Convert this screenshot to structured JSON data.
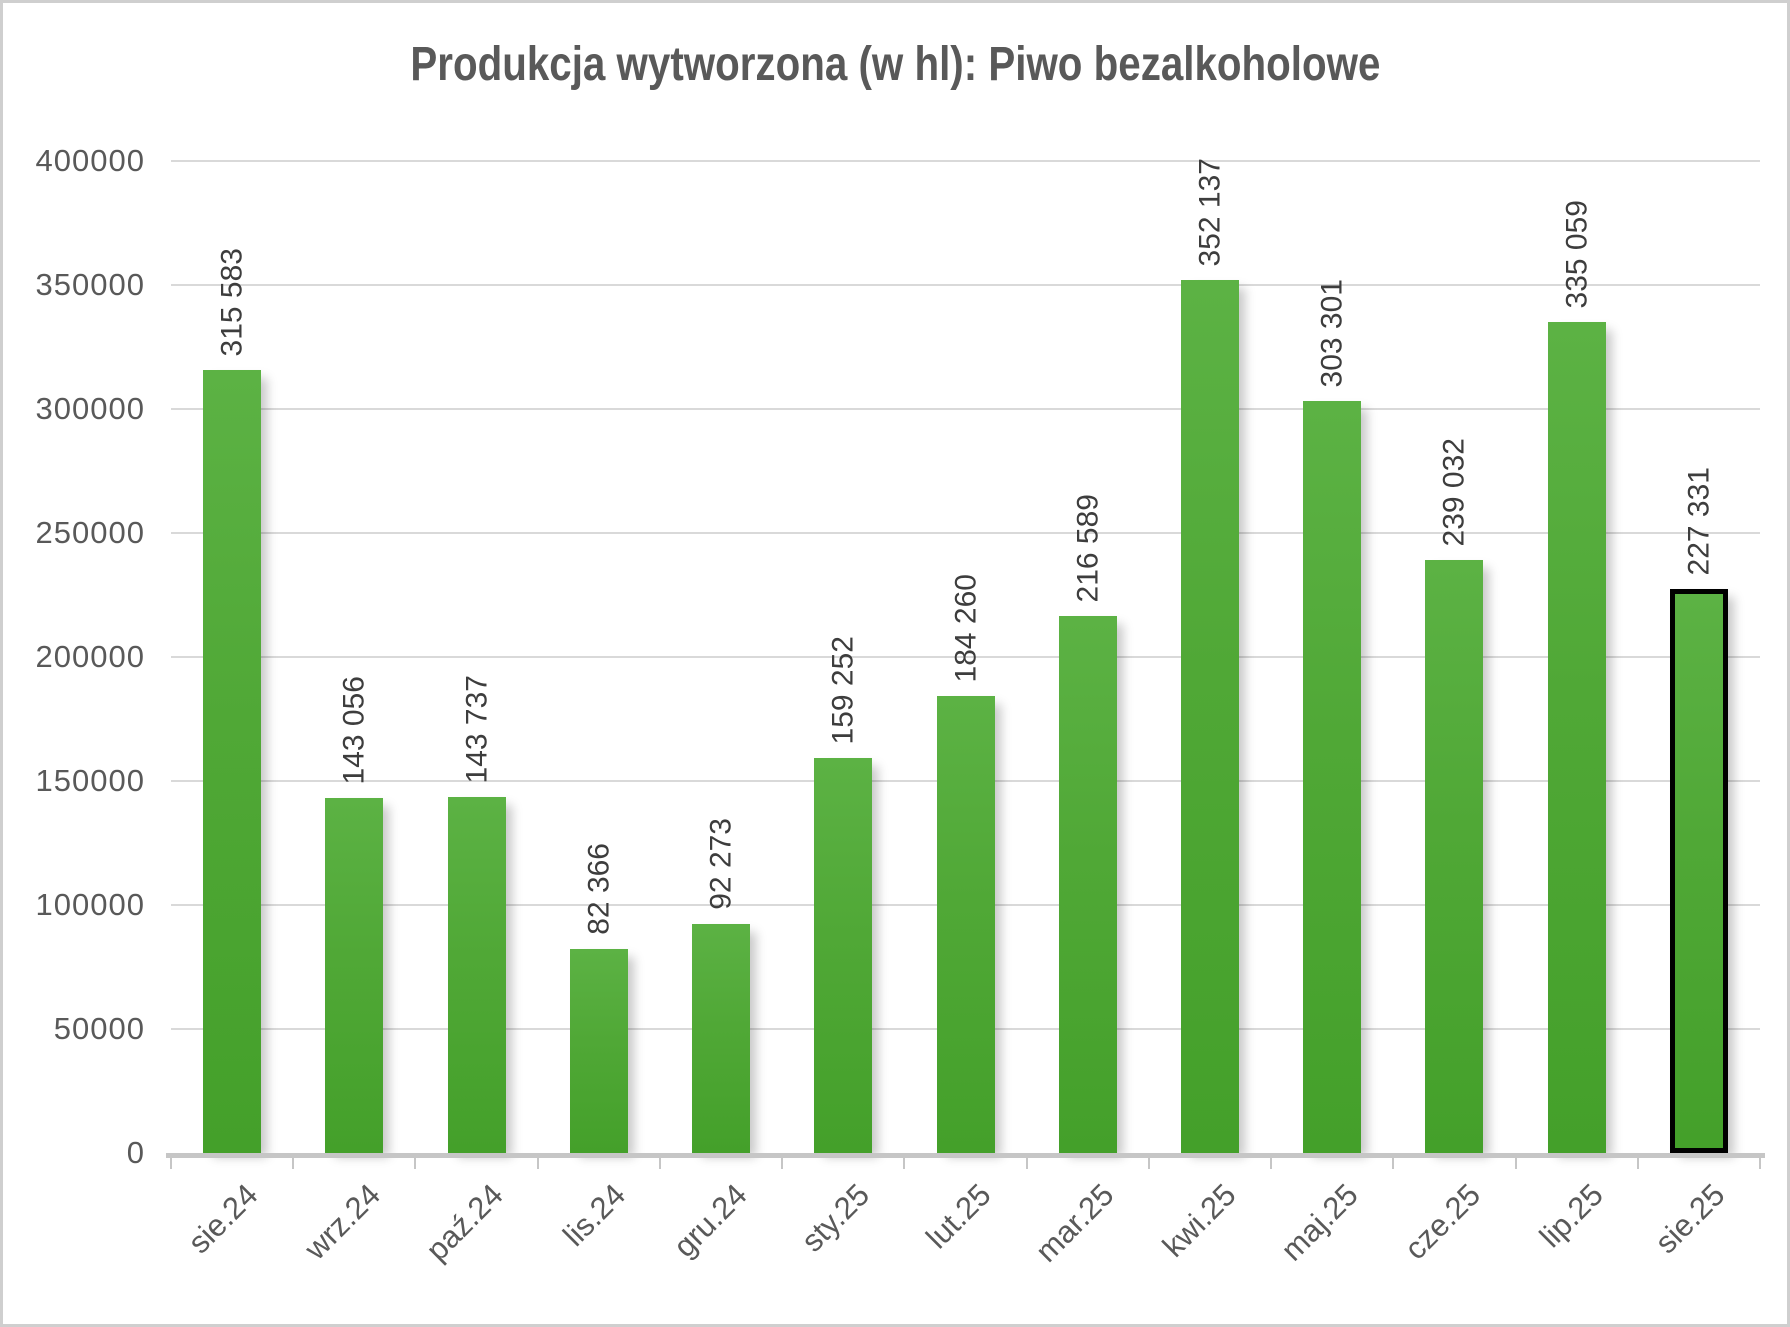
{
  "chart_data": {
    "type": "bar",
    "title": "Produkcja wytworzona (w hl): Piwo bezalkoholowe",
    "categories": [
      "sie.24",
      "wrz.24",
      "paź.24",
      "lis.24",
      "gru.24",
      "sty.25",
      "lut.25",
      "mar.25",
      "kwi.25",
      "maj.25",
      "cze.25",
      "lip.25",
      "sie.25"
    ],
    "values": [
      315583,
      143056,
      143737,
      82366,
      92273,
      159252,
      184260,
      216589,
      352137,
      303301,
      239032,
      335059,
      227331
    ],
    "value_labels": [
      "315 583",
      "143 056",
      "143 737",
      "82 366",
      "92 273",
      "159 252",
      "184 260",
      "216 589",
      "352 137",
      "303 301",
      "239 032",
      "335 059",
      "227 331"
    ],
    "ylim": [
      0,
      400000
    ],
    "ytick_step": 50000,
    "yticks": [
      "400000",
      "350000",
      "300000",
      "250000",
      "200000",
      "150000",
      "100000",
      "50000",
      "0"
    ],
    "grid": true,
    "legend": "none",
    "highlighted_category": "sie.25",
    "highlighted_index": 12,
    "colors": {
      "bar_gradient_top": "#5cb244",
      "bar_gradient_bottom": "#44a02a",
      "highlight_outline": "#000000",
      "gridline": "#d9d9d9",
      "axis_line": "#c6c6c6",
      "axis_tick_label": "#595959",
      "value_label": "#3d3d3d",
      "title": "#595959",
      "background": "#ffffff"
    }
  }
}
